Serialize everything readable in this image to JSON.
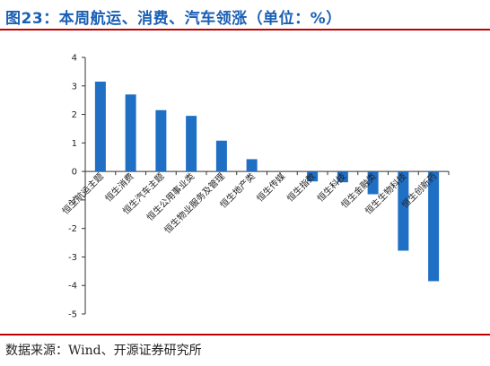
{
  "header": {
    "title": "图23：本周航运、消费、汽车领涨（单位：%）"
  },
  "footer": {
    "source": "数据来源：Wind、开源证券研究所"
  },
  "colors": {
    "bar": "#1f6fc5",
    "title": "#1a5fb4",
    "rule": "#c00000"
  },
  "chart_data": {
    "type": "bar",
    "categories": [
      "恒生航运主题",
      "恒生消费",
      "恒生汽车主题",
      "恒生公用事业类",
      "恒生物业服务及管理",
      "恒生地产类",
      "恒生传媒",
      "恒生指数",
      "恒生科技",
      "恒生金融类",
      "恒生生物科技",
      "恒生创新药"
    ],
    "values": [
      3.15,
      2.7,
      2.15,
      1.95,
      1.08,
      0.43,
      0.0,
      -0.35,
      -0.38,
      -0.8,
      -2.78,
      -3.85
    ],
    "ylim": [
      -5,
      4
    ],
    "yticks": [
      4,
      3,
      2,
      1,
      0,
      -1,
      -2,
      -3,
      -4,
      -5
    ],
    "xlabel": "",
    "ylabel": "",
    "grid": false
  }
}
